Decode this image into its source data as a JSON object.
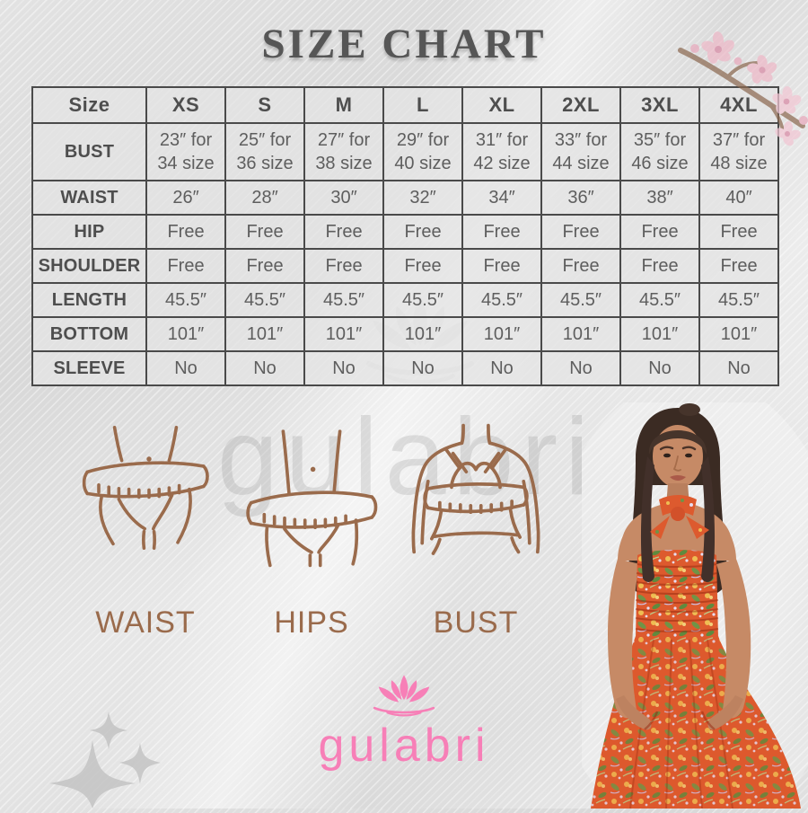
{
  "title": "SIZE CHART",
  "chart_data": {
    "type": "table",
    "title": "SIZE CHART",
    "columns": [
      "Size",
      "XS",
      "S",
      "M",
      "L",
      "XL",
      "2XL",
      "3XL",
      "4XL"
    ],
    "rows": [
      {
        "label": "BUST",
        "values": [
          "23″ for 34 size",
          "25″ for 36 size",
          "27″ for 38 size",
          "29″ for 40 size",
          "31″ for 42 size",
          "33″ for 44 size",
          "35″ for 46 size",
          "37″ for 48 size"
        ]
      },
      {
        "label": "WAIST",
        "values": [
          "26″",
          "28″",
          "30″",
          "32″",
          "34″",
          "36″",
          "38″",
          "40″"
        ]
      },
      {
        "label": "HIP",
        "values": [
          "Free",
          "Free",
          "Free",
          "Free",
          "Free",
          "Free",
          "Free",
          "Free"
        ]
      },
      {
        "label": "SHOULDER",
        "values": [
          "Free",
          "Free",
          "Free",
          "Free",
          "Free",
          "Free",
          "Free",
          "Free"
        ]
      },
      {
        "label": "LENGTH",
        "values": [
          "45.5″",
          "45.5″",
          "45.5″",
          "45.5″",
          "45.5″",
          "45.5″",
          "45.5″",
          "45.5″"
        ]
      },
      {
        "label": "BOTTOM",
        "values": [
          "101″",
          "101″",
          "101″",
          "101″",
          "101″",
          "101″",
          "101″",
          "101″"
        ]
      },
      {
        "label": "SLEEVE",
        "values": [
          "No",
          "No",
          "No",
          "No",
          "No",
          "No",
          "No",
          "No"
        ]
      }
    ]
  },
  "measurement_guide": {
    "labels": [
      "WAIST",
      "HIPS",
      "BUST"
    ]
  },
  "brand": {
    "name": "gulabri",
    "watermark": "gulabri"
  },
  "colors": {
    "accent_pink": "#f77fb7",
    "diagram_brown": "#9a6b4c",
    "table_text": "#5e5e5e",
    "dress_orange": "#dd5a2e"
  }
}
